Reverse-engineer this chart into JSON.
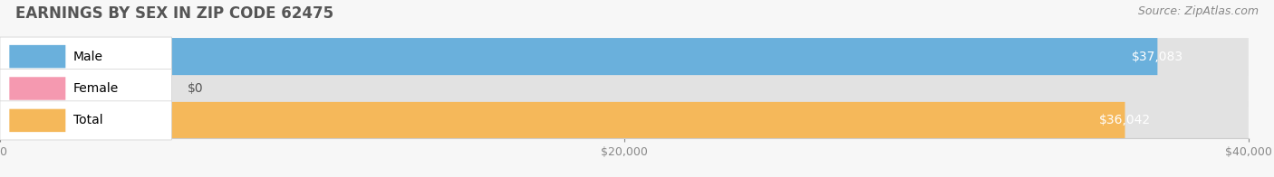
{
  "title": "EARNINGS BY SEX IN ZIP CODE 62475",
  "source": "Source: ZipAtlas.com",
  "categories": [
    "Male",
    "Female",
    "Total"
  ],
  "values": [
    37083,
    0,
    36042
  ],
  "bar_colors": [
    "#6ab0dc",
    "#f599b0",
    "#f5b85a"
  ],
  "bar_labels": [
    "$37,083",
    "$0",
    "$36,042"
  ],
  "xlim": [
    0,
    40000
  ],
  "xtick_labels": [
    "$0",
    "$20,000",
    "$40,000"
  ],
  "background_color": "#f7f7f7",
  "bar_bg_color": "#e2e2e2",
  "title_fontsize": 12,
  "source_fontsize": 9,
  "bar_height": 0.58,
  "label_fontsize": 10,
  "value_fontsize": 10
}
